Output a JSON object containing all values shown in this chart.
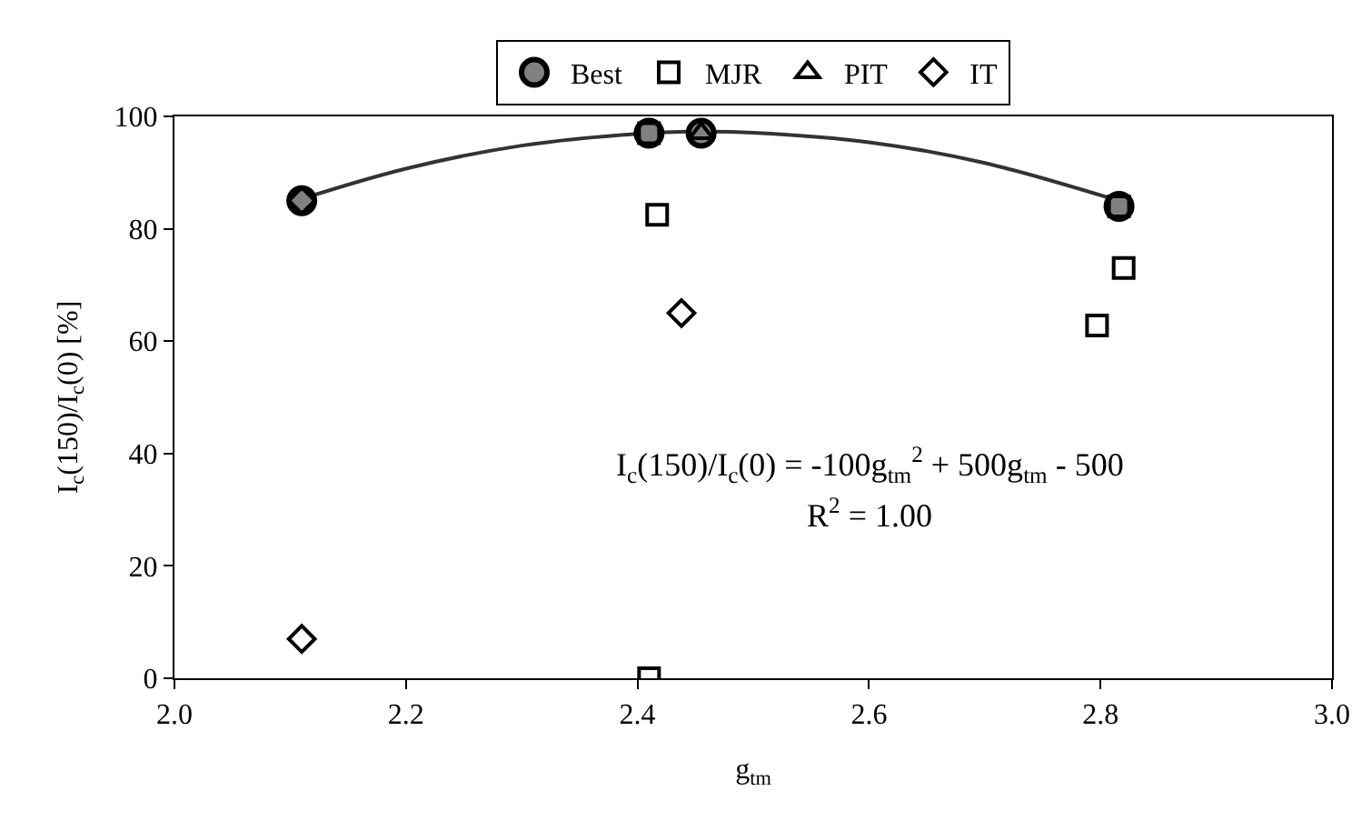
{
  "chart_data": {
    "type": "scatter",
    "xlabel": "g$_{tm}$",
    "ylabel": "I$_{c}$(150)/I$_{c}$(0) [%]",
    "xlim": [
      2.0,
      3.0
    ],
    "xticks": [
      {
        "value": 2.0,
        "label": "2.0"
      },
      {
        "value": 2.2,
        "label": "2.2"
      },
      {
        "value": 2.4,
        "label": "2.4"
      },
      {
        "value": 2.6,
        "label": "2.6"
      },
      {
        "value": 2.8,
        "label": "2.8"
      },
      {
        "value": 3.0,
        "label": "3.0"
      }
    ],
    "ylim": [
      0,
      100
    ],
    "yticks": [
      0,
      20,
      40,
      60,
      80,
      100
    ],
    "grid": false,
    "legend": "top",
    "annotations": [
      "I$_{c}$(150)/I$_{c}$(0) = -100g$_{tm}$$^{2}$ + 500g$_{tm}$ - 500",
      "R$^{2}$ = 1.00"
    ],
    "series": [
      {
        "type": "line",
        "color": "#333333",
        "marker": "none",
        "x": [
          2.105,
          2.2,
          2.3,
          2.4,
          2.46,
          2.5,
          2.6,
          2.7,
          2.82
        ],
        "values": [
          85.0,
          90.7,
          94.8,
          96.9,
          97.3,
          97.1,
          95.4,
          91.7,
          84.7
        ]
      },
      {
        "name": "Best",
        "color": "#808080",
        "marker": "circle",
        "x": [
          2.11,
          2.41,
          2.455,
          2.816
        ],
        "values": [
          85,
          97,
          97,
          84
        ]
      },
      {
        "name": "MJR",
        "color": "#000000",
        "marker": "square",
        "x": [
          2.41,
          2.417,
          2.41,
          2.797,
          2.82,
          2.816
        ],
        "values": [
          97,
          82.5,
          0,
          62.8,
          73,
          84
        ]
      },
      {
        "name": "PIT",
        "color": "#000000",
        "marker": "triangle",
        "x": [
          2.455
        ],
        "values": [
          97
        ]
      },
      {
        "name": "IT",
        "color": "#000000",
        "marker": "diamond",
        "x": [
          2.11,
          2.11,
          2.438
        ],
        "values": [
          85,
          7,
          65
        ]
      }
    ]
  }
}
